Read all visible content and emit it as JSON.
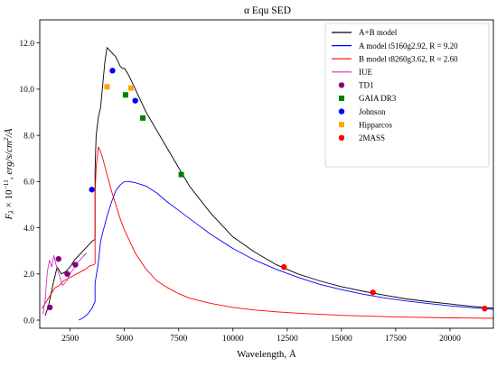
{
  "chart_data": {
    "type": "line",
    "title": "α Equ SED",
    "xlabel": "Wavelength, Å",
    "ylabel": "F_λ × 10^−11, erg/s/cm²/Å",
    "ylabel_parts": {
      "main": "F",
      "sub": "λ",
      "mid": " × 10",
      "sup": "−11",
      "tail": ", erg/s/cm",
      "sup2": "2",
      "end": "/Å"
    },
    "xlim": [
      1100,
      22000
    ],
    "ylim": [
      -0.35,
      13.0
    ],
    "x_ticks": [
      2500,
      5000,
      7500,
      10000,
      12500,
      15000,
      17500,
      20000
    ],
    "x_tick_labels": [
      "2500",
      "5000",
      "7500",
      "10000",
      "12500",
      "15000",
      "17500",
      "20000"
    ],
    "y_ticks": [
      0,
      2,
      4,
      6,
      8,
      10,
      12
    ],
    "y_tick_labels": [
      "0.0",
      "2.0",
      "4.0",
      "6.0",
      "8.0",
      "10.0",
      "12.0"
    ],
    "legend_position": "top-right",
    "grid": false,
    "series": [
      {
        "name": "A+B model",
        "kind": "line",
        "color": "#000000",
        "x": [
          1350,
          1500,
          1700,
          1900,
          2100,
          2300,
          2500,
          2700,
          2900,
          3100,
          3300,
          3500,
          3647,
          3650,
          3700,
          3800,
          3900,
          4000,
          4100,
          4200,
          4300,
          4400,
          4500,
          4600,
          4700,
          4800,
          4900,
          5000,
          5200,
          5400,
          5600,
          5800,
          6000,
          6500,
          7000,
          7500,
          8000,
          8500,
          9000,
          10000,
          11000,
          12000,
          13000,
          14000,
          15000,
          16000,
          17000,
          18000,
          19000,
          20000,
          21000,
          22000
        ],
        "y": [
          0.2,
          0.6,
          1.5,
          2.3,
          2.0,
          2.1,
          2.3,
          2.6,
          2.8,
          3.0,
          3.2,
          3.4,
          3.5,
          6.5,
          8.0,
          8.8,
          9.2,
          10.2,
          11.2,
          11.8,
          11.7,
          11.6,
          11.5,
          11.4,
          11.2,
          11.0,
          10.9,
          10.9,
          10.6,
          10.2,
          9.8,
          9.4,
          9.0,
          8.2,
          7.4,
          6.6,
          5.8,
          5.2,
          4.6,
          3.6,
          2.95,
          2.4,
          2.0,
          1.7,
          1.45,
          1.25,
          1.08,
          0.92,
          0.8,
          0.7,
          0.6,
          0.52
        ]
      },
      {
        "name": "A model t5160g2.92, R = 9.20",
        "kind": "line",
        "color": "#0000ff",
        "x": [
          2900,
          3100,
          3300,
          3500,
          3647,
          3650,
          3800,
          3900,
          4000,
          4200,
          4400,
          4600,
          4800,
          5000,
          5200,
          5500,
          6000,
          6500,
          7000,
          7500,
          8000,
          8500,
          9000,
          10000,
          11000,
          12000,
          13000,
          14000,
          15000,
          16000,
          17000,
          18000,
          19000,
          20000,
          21000,
          22000
        ],
        "y": [
          0.0,
          0.1,
          0.25,
          0.5,
          0.8,
          1.6,
          2.5,
          3.4,
          3.8,
          4.5,
          5.1,
          5.6,
          5.85,
          6.0,
          6.0,
          5.95,
          5.8,
          5.5,
          5.1,
          4.75,
          4.4,
          4.05,
          3.7,
          3.1,
          2.6,
          2.2,
          1.85,
          1.55,
          1.32,
          1.12,
          0.96,
          0.83,
          0.72,
          0.62,
          0.54,
          0.47
        ]
      },
      {
        "name": "B model t8260g3.62, R = 2.60",
        "kind": "line",
        "color": "#ff0000",
        "x": [
          1200,
          1400,
          1600,
          1800,
          2000,
          2200,
          2400,
          2600,
          2800,
          3000,
          3200,
          3400,
          3600,
          3647,
          3650,
          3700,
          3800,
          3900,
          4000,
          4200,
          4400,
          4600,
          4800,
          5000,
          5500,
          6000,
          6500,
          7000,
          7500,
          8000,
          9000,
          10000,
          11000,
          12000,
          13000,
          14000,
          15000,
          17500,
          20000,
          22000
        ],
        "y": [
          0.5,
          0.8,
          1.1,
          1.4,
          1.5,
          1.7,
          1.8,
          1.9,
          2.0,
          2.1,
          2.2,
          2.35,
          2.4,
          2.45,
          5.5,
          6.6,
          7.5,
          7.3,
          7.0,
          6.3,
          5.6,
          5.0,
          4.4,
          3.9,
          2.9,
          2.2,
          1.7,
          1.4,
          1.15,
          0.95,
          0.72,
          0.55,
          0.44,
          0.36,
          0.3,
          0.25,
          0.21,
          0.14,
          0.1,
          0.08
        ]
      },
      {
        "name": "IUE",
        "kind": "line",
        "color": "#cc33cc",
        "x": [
          1250,
          1350,
          1450,
          1550,
          1650,
          1750,
          1850,
          1950,
          2050,
          2150,
          2250,
          2350,
          2450,
          2550,
          2650,
          2750,
          2850,
          2950,
          3050,
          3150,
          3250
        ],
        "y": [
          0.25,
          0.9,
          2.1,
          2.6,
          2.3,
          2.8,
          2.4,
          2.1,
          1.8,
          1.5,
          1.6,
          1.7,
          1.9,
          2.1,
          2.2,
          2.4,
          2.5,
          2.6,
          2.7,
          2.8,
          2.9
        ]
      },
      {
        "name": "TD1",
        "kind": "scatter",
        "marker": "circle",
        "color": "#800080",
        "x": [
          1565,
          1965,
          2365,
          2740
        ],
        "y": [
          0.55,
          2.65,
          2.0,
          2.4
        ]
      },
      {
        "name": "GAIA DR3",
        "kind": "scatter",
        "marker": "square",
        "color": "#008000",
        "x": [
          5050,
          5850,
          7620
        ],
        "y": [
          9.75,
          8.75,
          6.3
        ]
      },
      {
        "name": "Johnson",
        "kind": "scatter",
        "marker": "circle",
        "color": "#0000ff",
        "x": [
          3500,
          4450,
          5500
        ],
        "y": [
          5.65,
          10.8,
          9.5
        ]
      },
      {
        "name": "Hipparcos",
        "kind": "scatter",
        "marker": "square",
        "color": "#ffa500",
        "x": [
          4200,
          5300
        ],
        "y": [
          10.1,
          10.05
        ]
      },
      {
        "name": "2MASS",
        "kind": "scatter",
        "marker": "circle",
        "color": "#ff0000",
        "x": [
          12350,
          16450,
          21600
        ],
        "y": [
          2.3,
          1.2,
          0.5
        ]
      }
    ]
  }
}
